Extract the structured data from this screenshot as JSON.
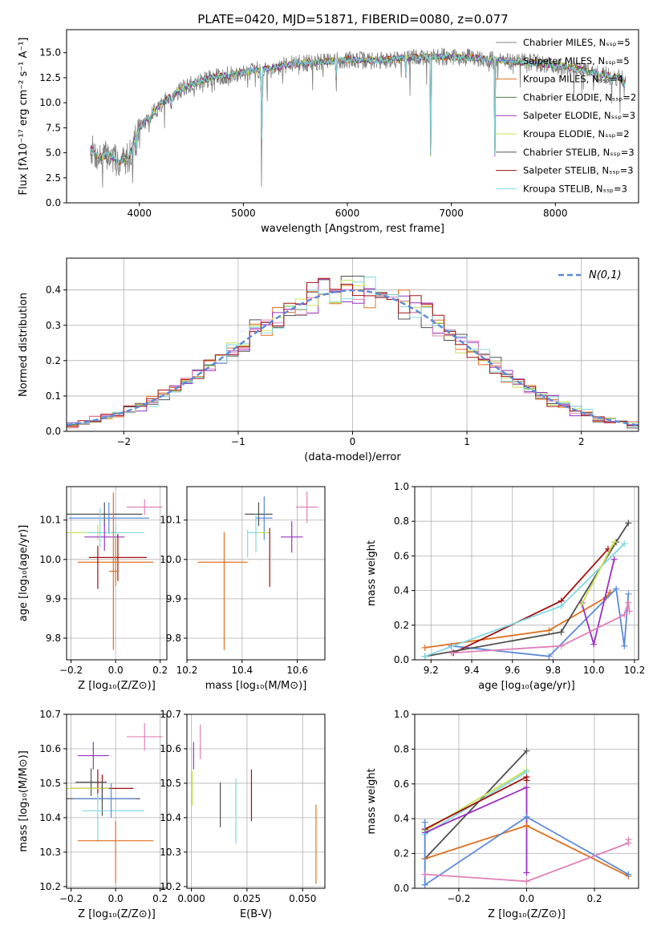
{
  "title": "PLATE=0420, MJD=51871, FIBERID=0080, z=0.077",
  "colors": {
    "Chabrier MILES": "#808080",
    "Salpeter MILES": "#5b8ad9",
    "Kroupa MILES": "#e07020",
    "Chabrier ELODIE": "#4c7a4c",
    "Salpeter ELODIE": "#9b30c0",
    "Kroupa ELODIE": "#c8e050",
    "Chabrier STELIB": "#505050",
    "Salpeter STELIB": "#a01010",
    "Kroupa STELIB": "#80d8e0",
    "pink": "#e080b8"
  },
  "chart_data": [
    {
      "id": "spectrum",
      "type": "line",
      "xlabel": "wavelength [Angstrom, rest frame]",
      "ylabel": "Flux [fλ10⁻¹⁷ erg cm⁻² s⁻¹ A⁻¹]",
      "xlim": [
        3300,
        8800
      ],
      "ylim": [
        0,
        17.3
      ],
      "xticks": [
        4000,
        5000,
        6000,
        7000,
        8000
      ],
      "xtick_labels": [
        "4000",
        "5000",
        "6000",
        "7000",
        "8000"
      ],
      "yticks": [
        0,
        2.5,
        5,
        7.5,
        10,
        12.5,
        15
      ],
      "ytick_labels": [
        "0.0",
        "2.5",
        "5.0",
        "7.5",
        "10.0",
        "12.5",
        "15.0"
      ],
      "legend_position": "top-right",
      "continuum": {
        "x": [
          3530,
          3600,
          3700,
          3800,
          3900,
          4000,
          4100,
          4200,
          4300,
          4400,
          4500,
          4700,
          5000,
          5200,
          5500,
          5800,
          6000,
          6300,
          6600,
          6900,
          7200,
          7500,
          7800,
          8100,
          8400,
          8700
        ],
        "y": [
          5.5,
          4.5,
          4.8,
          4.0,
          4.6,
          7.5,
          8.6,
          9.8,
          10.6,
          11.3,
          11.8,
          12.5,
          13.0,
          13.4,
          13.9,
          14.1,
          14.3,
          14.2,
          14.5,
          14.6,
          14.5,
          14.2,
          14.0,
          13.6,
          12.9,
          12.3
        ]
      },
      "absorption_lines": [
        {
          "x": 3934,
          "depth": 2.2
        },
        {
          "x": 3969,
          "depth": 2.0
        },
        {
          "x": 4102,
          "depth": 1.2
        },
        {
          "x": 4304,
          "depth": 1.4
        },
        {
          "x": 4861,
          "depth": 1.0
        },
        {
          "x": 5175,
          "depth": 13.2
        },
        {
          "x": 5270,
          "depth": 1.0
        },
        {
          "x": 5893,
          "depth": 3.2
        },
        {
          "x": 6563,
          "depth": 2.0
        },
        {
          "x": 6800,
          "depth": 14.5
        },
        {
          "x": 7420,
          "depth": 14.0
        },
        {
          "x": 8542,
          "depth": 1.5
        },
        {
          "x": 8662,
          "depth": 1.5
        }
      ],
      "series": [
        {
          "name": "Chabrier MILES, N_SSP=5",
          "colorKey": "Chabrier MILES"
        },
        {
          "name": "Salpeter MILES, N_SSP=5",
          "colorKey": "Salpeter MILES"
        },
        {
          "name": "Kroupa MILES, N_SSP=4",
          "colorKey": "Kroupa MILES"
        },
        {
          "name": "Chabrier ELODIE, N_SSP=2",
          "colorKey": "Chabrier ELODIE"
        },
        {
          "name": "Salpeter ELODIE, N_SSP=3",
          "colorKey": "Salpeter ELODIE"
        },
        {
          "name": "Kroupa ELODIE, N_SSP=2",
          "colorKey": "Kroupa ELODIE"
        },
        {
          "name": "Chabrier STELIB, N_SSP=3",
          "colorKey": "Chabrier STELIB"
        },
        {
          "name": "Salpeter STELIB, N_SSP=3",
          "colorKey": "Salpeter STELIB"
        },
        {
          "name": "Kroupa STELIB, N_SSP=3",
          "colorKey": "Kroupa STELIB"
        }
      ]
    },
    {
      "id": "residuals",
      "type": "histogram",
      "xlabel": "(data-model)/error",
      "ylabel": "Normed distribution",
      "xlim": [
        -2.5,
        2.5
      ],
      "ylim": [
        0,
        0.49
      ],
      "xticks": [
        -2,
        -1,
        0,
        1,
        2
      ],
      "xtick_labels": [
        "−2",
        "−1",
        "0",
        "1",
        "2"
      ],
      "yticks": [
        0,
        0.1,
        0.2,
        0.3,
        0.4
      ],
      "ytick_labels": [
        "0.0",
        "0.1",
        "0.2",
        "0.3",
        "0.4"
      ],
      "grid": true,
      "legend_position": "top-right",
      "gaussian": {
        "name": "N(0,1)",
        "mean": 0,
        "sigma": 1,
        "colorKey": "Salpeter MILES"
      },
      "bin_width": 0.1,
      "series_colors": [
        "Chabrier STELIB",
        "Kroupa MILES",
        "Salpeter ELODIE",
        "Kroupa ELODIE",
        "pink",
        "Kroupa STELIB",
        "Salpeter STELIB"
      ]
    },
    {
      "id": "age_vs_Z",
      "type": "errorbar",
      "xlabel": "Z [log₁₀(Z/Z⊙)]",
      "ylabel": "age  [log₁₀(age/yr)]",
      "xlim": [
        -0.22,
        0.23
      ],
      "ylim": [
        9.745,
        10.185
      ],
      "xticks": [
        -0.2,
        0,
        0.2
      ],
      "xtick_labels": [
        "−0.2",
        "0.0",
        "0.2"
      ],
      "yticks": [
        9.8,
        9.9,
        10.0,
        10.1
      ],
      "ytick_labels": [
        "9.8",
        "9.9",
        "10.0",
        "10.1"
      ],
      "grid": true,
      "points": [
        {
          "x": 0.13,
          "y": 10.133,
          "xerr": 0.08,
          "yerr": 0.02,
          "colorKey": "pink"
        },
        {
          "x": -0.05,
          "y": 10.115,
          "xerr": 0.17,
          "yerr": 0.03,
          "colorKey": "Chabrier STELIB"
        },
        {
          "x": -0.03,
          "y": 10.105,
          "xerr": 0.18,
          "yerr": 0.04,
          "colorKey": "Salpeter MILES"
        },
        {
          "x": -0.08,
          "y": 10.068,
          "xerr": 0.14,
          "yerr": 0.02,
          "colorKey": "Kroupa ELODIE"
        },
        {
          "x": 0.0,
          "y": 10.068,
          "xerr": 0.13,
          "yerr": 0.02,
          "colorKey": "Kroupa STELIB"
        },
        {
          "x": -0.05,
          "y": 10.057,
          "xerr": 0.09,
          "yerr": 0.035,
          "colorKey": "Salpeter ELODIE"
        },
        {
          "x": 0.01,
          "y": 10.005,
          "xerr": 0.13,
          "yerr": 0.06,
          "colorKey": "Salpeter STELIB"
        },
        {
          "x": 0.0,
          "y": 9.993,
          "xerr": 0.17,
          "yerr": 0.06,
          "colorKey": "Kroupa MILES"
        },
        {
          "x": -0.01,
          "y": 9.97,
          "xerr": 0.02,
          "yerr": 0.2,
          "colorKey": "Kroupa MILES"
        },
        {
          "x": -0.08,
          "y": 9.98,
          "xerr": 0.0,
          "yerr": 0.055,
          "colorKey": "Salpeter STELIB"
        },
        {
          "x": -0.07,
          "y": 10.08,
          "xerr": 0.0,
          "yerr": 0.05,
          "colorKey": "Kroupa STELIB"
        }
      ]
    },
    {
      "id": "age_vs_mass",
      "type": "errorbar",
      "xlabel": "mass [log₁₀(M/M⊙)]",
      "ylabel": "",
      "xlim": [
        10.2,
        10.7
      ],
      "ylim": [
        9.745,
        10.185
      ],
      "xticks": [
        10.2,
        10.4,
        10.6
      ],
      "xtick_labels": [
        "10.2",
        "10.4",
        "10.6"
      ],
      "yticks": [
        9.8,
        9.9,
        10.0,
        10.1
      ],
      "ytick_labels": [
        "9.8",
        "9.9",
        "10.0",
        "10.1"
      ],
      "grid": true,
      "points": [
        {
          "x": 10.635,
          "y": 10.133,
          "xerr": 0.04,
          "yerr": 0.04,
          "colorKey": "pink"
        },
        {
          "x": 10.46,
          "y": 10.115,
          "xerr": 0.05,
          "yerr": 0.03,
          "colorKey": "Chabrier STELIB"
        },
        {
          "x": 10.48,
          "y": 10.105,
          "xerr": 0.03,
          "yerr": 0.055,
          "colorKey": "Salpeter MILES"
        },
        {
          "x": 10.45,
          "y": 10.068,
          "xerr": 0.03,
          "yerr": 0.05,
          "colorKey": "Kroupa STELIB"
        },
        {
          "x": 10.48,
          "y": 10.068,
          "xerr": 0.02,
          "yerr": 0.0,
          "colorKey": "Kroupa ELODIE"
        },
        {
          "x": 10.58,
          "y": 10.057,
          "xerr": 0.04,
          "yerr": 0.04,
          "colorKey": "Salpeter ELODIE"
        },
        {
          "x": 10.5,
          "y": 10.005,
          "xerr": 0.0,
          "yerr": 0.075,
          "colorKey": "Salpeter STELIB"
        },
        {
          "x": 10.33,
          "y": 9.993,
          "xerr": 0.09,
          "yerr": 0.0,
          "colorKey": "Kroupa MILES"
        },
        {
          "x": 10.335,
          "y": 9.92,
          "xerr": 0.0,
          "yerr": 0.15,
          "colorKey": "Kroupa MILES"
        },
        {
          "x": 10.42,
          "y": 10.04,
          "xerr": 0.0,
          "yerr": 0.035,
          "colorKey": "Kroupa STELIB"
        }
      ]
    },
    {
      "id": "weight_vs_age",
      "type": "line",
      "xlabel": "age  [log₁₀(age/yr)]",
      "ylabel": "mass weight",
      "xlim": [
        9.12,
        10.22
      ],
      "ylim": [
        0,
        1.0
      ],
      "xticks": [
        9.2,
        9.4,
        9.6,
        9.8,
        10.0,
        10.2
      ],
      "xtick_labels": [
        "9.2",
        "9.4",
        "9.6",
        "9.8",
        "10.0",
        "10.2"
      ],
      "yticks": [
        0,
        0.2,
        0.4,
        0.6,
        0.8,
        1.0
      ],
      "ytick_labels": [
        "0.0",
        "0.2",
        "0.4",
        "0.6",
        "0.8",
        "1.0"
      ],
      "grid": true,
      "series": [
        {
          "colorKey": "Kroupa MILES",
          "x": [
            9.17,
            9.78,
            10.06,
            10.08
          ],
          "y": [
            0.07,
            0.17,
            0.36,
            0.39
          ]
        },
        {
          "colorKey": "Salpeter MILES",
          "x": [
            9.3,
            9.78,
            10.11,
            10.15,
            10.17
          ],
          "y": [
            0.08,
            0.02,
            0.41,
            0.08,
            0.38
          ]
        },
        {
          "colorKey": "Salpeter STELIB",
          "x": [
            9.31,
            9.84,
            10.07
          ],
          "y": [
            0.04,
            0.34,
            0.64
          ]
        },
        {
          "colorKey": "Chabrier STELIB",
          "x": [
            9.17,
            9.84,
            10.11,
            10.17
          ],
          "y": [
            0.02,
            0.16,
            0.68,
            0.79
          ]
        },
        {
          "colorKey": "Kroupa STELIB",
          "x": [
            9.17,
            9.84,
            10.15
          ],
          "y": [
            0.02,
            0.31,
            0.67
          ]
        },
        {
          "colorKey": "Salpeter ELODIE",
          "x": [
            9.94,
            10.0,
            10.1
          ],
          "y": [
            0.33,
            0.09,
            0.58
          ]
        },
        {
          "colorKey": "Kroupa ELODIE",
          "x": [
            9.94,
            10.1
          ],
          "y": [
            0.32,
            0.68
          ]
        },
        {
          "colorKey": "pink",
          "x": [
            9.3,
            9.84,
            10.15,
            10.17,
            10.175
          ],
          "y": [
            0.04,
            0.08,
            0.26,
            0.33,
            0.28
          ]
        }
      ]
    },
    {
      "id": "mass_vs_Z",
      "type": "errorbar",
      "xlabel": "Z [log₁₀(Z/Z⊙)]",
      "ylabel": "mass [log₁₀(M/M⊙)]",
      "xlim": [
        -0.22,
        0.23
      ],
      "ylim": [
        10.195,
        10.7
      ],
      "xticks": [
        -0.2,
        0,
        0.2
      ],
      "xtick_labels": [
        "−0.2",
        "0.0",
        "0.2"
      ],
      "yticks": [
        10.2,
        10.3,
        10.4,
        10.5,
        10.6,
        10.7
      ],
      "ytick_labels": [
        "10.2",
        "10.3",
        "10.4",
        "10.5",
        "10.6",
        "10.7"
      ],
      "grid": true,
      "points": [
        {
          "x": 0.13,
          "y": 10.635,
          "xerr": 0.08,
          "yerr": 0.04,
          "colorKey": "pink"
        },
        {
          "x": -0.1,
          "y": 10.58,
          "xerr": 0.07,
          "yerr": 0.04,
          "colorKey": "Salpeter ELODIE"
        },
        {
          "x": -0.11,
          "y": 10.503,
          "xerr": 0.07,
          "yerr": 0.04,
          "colorKey": "Chabrier STELIB"
        },
        {
          "x": -0.08,
          "y": 10.5,
          "xerr": 0.0,
          "yerr": 0.04,
          "colorKey": "Salpeter STELIB"
        },
        {
          "x": -0.06,
          "y": 10.485,
          "xerr": 0.14,
          "yerr": 0.04,
          "colorKey": "Salpeter STELIB"
        },
        {
          "x": -0.13,
          "y": 10.485,
          "xerr": 0.1,
          "yerr": 0.0,
          "colorKey": "Kroupa ELODIE"
        },
        {
          "x": -0.06,
          "y": 10.455,
          "xerr": 0.17,
          "yerr": 0.05,
          "colorKey": "Chabrier STELIB"
        },
        {
          "x": -0.05,
          "y": 10.455,
          "xerr": 0.14,
          "yerr": 0.0,
          "colorKey": "Salpeter MILES"
        },
        {
          "x": -0.01,
          "y": 10.42,
          "xerr": 0.14,
          "yerr": 0.0,
          "colorKey": "Kroupa STELIB"
        },
        {
          "x": -0.08,
          "y": 10.4,
          "xerr": 0.0,
          "yerr": 0.07,
          "colorKey": "Kroupa STELIB"
        },
        {
          "x": -0.02,
          "y": 10.45,
          "xerr": 0.0,
          "yerr": 0.05,
          "colorKey": "Salpeter MILES"
        },
        {
          "x": 0.0,
          "y": 10.333,
          "xerr": 0.17,
          "yerr": 0.0,
          "colorKey": "Kroupa MILES"
        },
        {
          "x": 0.0,
          "y": 10.3,
          "xerr": 0.0,
          "yerr": 0.09,
          "colorKey": "Kroupa MILES"
        }
      ]
    },
    {
      "id": "mass_vs_EBV",
      "type": "errorbar",
      "xlabel": "E(B-V)",
      "ylabel": "",
      "xlim": [
        -0.002,
        0.06
      ],
      "ylim": [
        10.195,
        10.7
      ],
      "xticks": [
        0,
        0.025,
        0.05
      ],
      "xtick_labels": [
        "0.000",
        "0.025",
        "0.050"
      ],
      "yticks": [
        10.2,
        10.3,
        10.4,
        10.5,
        10.6,
        10.7
      ],
      "ytick_labels": [
        "10.2",
        "10.3",
        "10.4",
        "10.5",
        "10.6",
        "10.7"
      ],
      "grid": true,
      "points": [
        {
          "x": 0.004,
          "y": 10.62,
          "xerr": 0.0,
          "yerr": 0.05,
          "colorKey": "pink"
        },
        {
          "x": 0.001,
          "y": 10.58,
          "xerr": 0.0,
          "yerr": 0.04,
          "colorKey": "Salpeter ELODIE"
        },
        {
          "x": 0.0005,
          "y": 10.485,
          "xerr": 0.0,
          "yerr": 0.05,
          "colorKey": "Kroupa ELODIE"
        },
        {
          "x": 0.013,
          "y": 10.437,
          "xerr": 0.0,
          "yerr": 0.065,
          "colorKey": "Chabrier STELIB"
        },
        {
          "x": 0.02,
          "y": 10.42,
          "xerr": 0.0,
          "yerr": 0.095,
          "colorKey": "Kroupa STELIB"
        },
        {
          "x": 0.027,
          "y": 10.465,
          "xerr": 0.0,
          "yerr": 0.075,
          "colorKey": "Salpeter STELIB"
        },
        {
          "x": 0.056,
          "y": 10.323,
          "xerr": 0.0,
          "yerr": 0.115,
          "colorKey": "Kroupa MILES"
        }
      ]
    },
    {
      "id": "weight_vs_Z",
      "type": "line",
      "xlabel": "Z [log₁₀(Z/Z⊙)]",
      "ylabel": "mass weight",
      "xlim": [
        -0.33,
        0.33
      ],
      "ylim": [
        0,
        1.0
      ],
      "xticks": [
        -0.2,
        0,
        0.2
      ],
      "xtick_labels": [
        "−0.2",
        "0.0",
        "0.2"
      ],
      "yticks": [
        0,
        0.2,
        0.4,
        0.6,
        0.8,
        1.0
      ],
      "ytick_labels": [
        "0.0",
        "0.2",
        "0.4",
        "0.6",
        "0.8",
        "1.0"
      ],
      "grid": true,
      "series": [
        {
          "colorKey": "Chabrier STELIB",
          "x": [
            -0.3,
            0.0
          ],
          "y": [
            0.17,
            0.79
          ]
        },
        {
          "colorKey": "Kroupa ELODIE",
          "x": [
            -0.3,
            0.0
          ],
          "y": [
            0.33,
            0.68
          ]
        },
        {
          "colorKey": "Kroupa STELIB",
          "x": [
            -0.3,
            -0.3,
            0.0
          ],
          "y": [
            0.02,
            0.31,
            0.67
          ]
        },
        {
          "colorKey": "Salpeter STELIB",
          "x": [
            -0.3,
            0.0,
            0.0
          ],
          "y": [
            0.34,
            0.64,
            0.62
          ]
        },
        {
          "colorKey": "Salpeter ELODIE",
          "x": [
            -0.3,
            0.0,
            0.0
          ],
          "y": [
            0.32,
            0.58,
            0.09
          ]
        },
        {
          "colorKey": "Kroupa MILES",
          "x": [
            -0.3,
            0.0,
            0.3
          ],
          "y": [
            0.17,
            0.36,
            0.07
          ]
        },
        {
          "colorKey": "Salpeter MILES",
          "x": [
            -0.3,
            -0.3,
            0.0,
            0.3
          ],
          "y": [
            0.38,
            0.02,
            0.41,
            0.08
          ]
        },
        {
          "colorKey": "pink",
          "x": [
            -0.3,
            0.0,
            0.3,
            0.3
          ],
          "y": [
            0.08,
            0.04,
            0.26,
            0.28
          ]
        }
      ]
    }
  ]
}
